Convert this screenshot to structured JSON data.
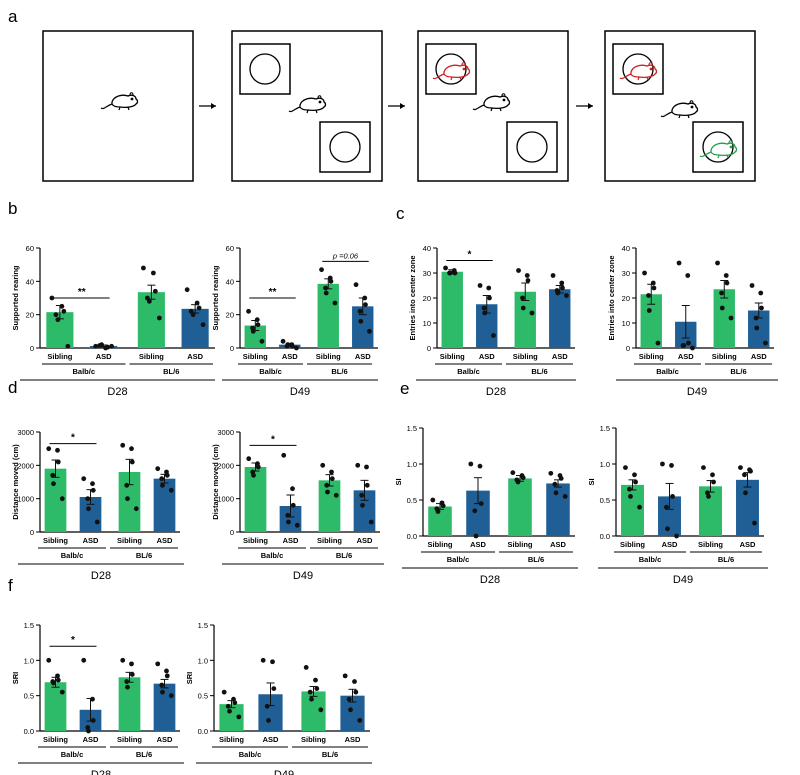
{
  "panels": {
    "a": "a",
    "b": "b",
    "c": "c",
    "d": "d",
    "e": "e",
    "f": "f"
  },
  "colors": {
    "sibling": "#2dbb6a",
    "asd": "#1f5f96",
    "axis": "#000000",
    "red_rat": "#cc2222",
    "green_rat": "#22a04a"
  },
  "schematic": {
    "description_free": true,
    "arrows": 3
  },
  "chart_data": [
    {
      "id": "b_d28",
      "type": "bar",
      "panel": "b",
      "ylabel": "Supported rearing",
      "ylim": [
        0,
        60
      ],
      "yticks": [
        0,
        20,
        40,
        60
      ],
      "categories": [
        "Sibling",
        "ASD",
        "Sibling",
        "ASD"
      ],
      "groups": [
        "Balb/c",
        "BL/6"
      ],
      "timepoint": "D28",
      "values": [
        21.5,
        1.2,
        33.5,
        23.5
      ],
      "errors": [
        4.0,
        0.6,
        4.2,
        2.5
      ],
      "points": [
        [
          30,
          25,
          22,
          20,
          17,
          1
        ],
        [
          1,
          0,
          0.5,
          1.5,
          2,
          1
        ],
        [
          48,
          45,
          34,
          30,
          28,
          18
        ],
        [
          35,
          27,
          24,
          22,
          20,
          14
        ]
      ],
      "sig": [
        {
          "bar1": 0,
          "bar2": 1,
          "label": "**",
          "y": 30
        }
      ]
    },
    {
      "id": "b_d49",
      "type": "bar",
      "panel": "b",
      "ylabel": "Supported rearing",
      "ylim": [
        0,
        60
      ],
      "yticks": [
        0,
        20,
        40,
        60
      ],
      "categories": [
        "Sibling",
        "ASD",
        "Sibling",
        "ASD"
      ],
      "groups": [
        "Balb/c",
        "BL/6"
      ],
      "timepoint": "D49",
      "values": [
        13.5,
        2.0,
        38.5,
        25.0
      ],
      "errors": [
        3.0,
        0.8,
        3.0,
        5.0
      ],
      "points": [
        [
          22,
          17,
          14,
          12,
          10,
          4
        ],
        [
          4,
          2,
          1,
          1,
          2,
          0
        ],
        [
          47,
          42,
          40,
          36,
          33,
          27
        ],
        [
          38,
          30,
          26,
          22,
          16,
          10
        ]
      ],
      "sig": [
        {
          "bar1": 0,
          "bar2": 1,
          "label": "**",
          "y": 30
        },
        {
          "bar1": 2,
          "bar2": 3,
          "label": "p =0.06",
          "y": 52
        }
      ]
    },
    {
      "id": "c_d28",
      "type": "bar",
      "panel": "c",
      "ylabel": "Entries into center zone",
      "ylim": [
        0,
        40
      ],
      "yticks": [
        0,
        10,
        20,
        30,
        40
      ],
      "categories": [
        "Sibling",
        "ASD",
        "Sibling",
        "ASD"
      ],
      "groups": [
        "Balb/c",
        "BL/6"
      ],
      "timepoint": "D28",
      "values": [
        30.5,
        17.5,
        22.5,
        23.5
      ],
      "errors": [
        0.8,
        3.5,
        3.5,
        1.5
      ],
      "points": [
        [
          32,
          31,
          30,
          30,
          30
        ],
        [
          25,
          24,
          20,
          16,
          14,
          5
        ],
        [
          31,
          29,
          27,
          20,
          16,
          14
        ],
        [
          29,
          26,
          24,
          23,
          22,
          21
        ]
      ],
      "sig": [
        {
          "bar1": 0,
          "bar2": 1,
          "label": "*",
          "y": 35
        }
      ]
    },
    {
      "id": "c_d49",
      "type": "bar",
      "panel": "c",
      "ylabel": "Entries into center zone",
      "ylim": [
        0,
        40
      ],
      "yticks": [
        0,
        10,
        20,
        30,
        40
      ],
      "categories": [
        "Sibling",
        "ASD",
        "Sibling",
        "ASD"
      ],
      "groups": [
        "Balb/c",
        "BL/6"
      ],
      "timepoint": "D49",
      "values": [
        21.5,
        10.5,
        23.5,
        15.0
      ],
      "errors": [
        4.0,
        6.5,
        3.5,
        3.0
      ],
      "points": [
        [
          30,
          26,
          24,
          21,
          15,
          2
        ],
        [
          34,
          29,
          2,
          1,
          1,
          0
        ],
        [
          34,
          29,
          26,
          22,
          16,
          12
        ],
        [
          25,
          22,
          16,
          12,
          8,
          2
        ]
      ],
      "sig": []
    },
    {
      "id": "d_d28",
      "type": "bar",
      "panel": "d",
      "ylabel": "Distance moved (cm)",
      "ylim": [
        0,
        3000
      ],
      "yticks": [
        0,
        1000,
        2000,
        3000
      ],
      "categories": [
        "Sibling",
        "ASD",
        "Sibling",
        "ASD"
      ],
      "groups": [
        "Balb/c",
        "BL/6"
      ],
      "timepoint": "D28",
      "values": [
        1900,
        1050,
        1800,
        1600
      ],
      "errors": [
        260,
        220,
        380,
        130
      ],
      "points": [
        [
          2500,
          2450,
          2100,
          1700,
          1450,
          1000
        ],
        [
          1600,
          1450,
          1250,
          1000,
          700,
          300
        ],
        [
          2600,
          2500,
          2100,
          1400,
          1000,
          700
        ],
        [
          1900,
          1800,
          1700,
          1600,
          1400,
          1250
        ]
      ],
      "sig": [
        {
          "bar1": 0,
          "bar2": 1,
          "label": "*",
          "y": 2650
        }
      ]
    },
    {
      "id": "d_d49",
      "type": "bar",
      "panel": "d",
      "ylabel": "Distance moved (cm)",
      "ylim": [
        0,
        3000
      ],
      "yticks": [
        0,
        1000,
        2000,
        3000
      ],
      "categories": [
        "Sibling",
        "ASD",
        "Sibling",
        "ASD"
      ],
      "groups": [
        "Balb/c",
        "BL/6"
      ],
      "timepoint": "D49",
      "values": [
        1950,
        780,
        1550,
        1250
      ],
      "errors": [
        120,
        330,
        170,
        300
      ],
      "points": [
        [
          2200,
          2050,
          1950,
          1800,
          1700
        ],
        [
          2300,
          1300,
          800,
          500,
          300,
          200
        ],
        [
          2000,
          1800,
          1600,
          1400,
          1200,
          1100
        ],
        [
          2000,
          1950,
          1400,
          1100,
          800,
          300
        ]
      ],
      "sig": [
        {
          "bar1": 0,
          "bar2": 1,
          "label": "*",
          "y": 2600
        }
      ]
    },
    {
      "id": "e_d28",
      "type": "bar",
      "panel": "e",
      "ylabel": "SI",
      "ylim": [
        0,
        1.5
      ],
      "yticks": [
        0.0,
        0.5,
        1.0,
        1.5
      ],
      "categories": [
        "Sibling",
        "ASD",
        "Sibling",
        "ASD"
      ],
      "groups": [
        "Balb/c",
        "BL/6"
      ],
      "timepoint": "D28",
      "values": [
        0.41,
        0.63,
        0.8,
        0.73
      ],
      "errors": [
        0.04,
        0.18,
        0.04,
        0.05
      ],
      "points": [
        [
          0.5,
          0.46,
          0.42,
          0.38,
          0.34
        ],
        [
          1.0,
          0.97,
          0.45,
          0.35,
          0.0
        ],
        [
          0.88,
          0.84,
          0.81,
          0.78,
          0.75
        ],
        [
          0.87,
          0.84,
          0.8,
          0.72,
          0.6,
          0.55
        ]
      ],
      "sig": []
    },
    {
      "id": "e_d49",
      "type": "bar",
      "panel": "e",
      "ylabel": "SI",
      "ylim": [
        0,
        1.5
      ],
      "yticks": [
        0.0,
        0.5,
        1.0,
        1.5
      ],
      "categories": [
        "Sibling",
        "ASD",
        "Sibling",
        "ASD"
      ],
      "groups": [
        "Balb/c",
        "BL/6"
      ],
      "timepoint": "D49",
      "values": [
        0.71,
        0.55,
        0.69,
        0.78
      ],
      "errors": [
        0.07,
        0.18,
        0.08,
        0.1
      ],
      "points": [
        [
          0.95,
          0.85,
          0.75,
          0.65,
          0.55,
          0.4
        ],
        [
          1.0,
          0.98,
          0.55,
          0.4,
          0.1,
          0.0
        ],
        [
          0.95,
          0.85,
          0.75,
          0.6,
          0.55
        ],
        [
          0.95,
          0.92,
          0.9,
          0.85,
          0.6,
          0.18
        ]
      ],
      "sig": []
    },
    {
      "id": "f_d28",
      "type": "bar",
      "panel": "f",
      "ylabel": "SRI",
      "ylim": [
        0,
        1.5
      ],
      "yticks": [
        0.0,
        0.5,
        1.0,
        1.5
      ],
      "categories": [
        "Sibling",
        "ASD",
        "Sibling",
        "ASD"
      ],
      "groups": [
        "Balb/c",
        "BL/6"
      ],
      "timepoint": "D28",
      "values": [
        0.69,
        0.3,
        0.76,
        0.67
      ],
      "errors": [
        0.07,
        0.16,
        0.07,
        0.06
      ],
      "points": [
        [
          1.0,
          0.78,
          0.72,
          0.7,
          0.68,
          0.55
        ],
        [
          1.0,
          0.45,
          0.15,
          0.05,
          0.0
        ],
        [
          1.0,
          0.95,
          0.8,
          0.7,
          0.62
        ],
        [
          0.95,
          0.85,
          0.78,
          0.65,
          0.55,
          0.5
        ]
      ],
      "sig": [
        {
          "bar1": 0,
          "bar2": 1,
          "label": "*",
          "y": 1.2
        }
      ]
    },
    {
      "id": "f_d49",
      "type": "bar",
      "panel": "f",
      "ylabel": "SRI",
      "ylim": [
        0,
        1.5
      ],
      "yticks": [
        0.0,
        0.5,
        1.0,
        1.5
      ],
      "categories": [
        "Sibling",
        "ASD",
        "Sibling",
        "ASD"
      ],
      "groups": [
        "Balb/c",
        "BL/6"
      ],
      "timepoint": "D49",
      "values": [
        0.38,
        0.52,
        0.56,
        0.5
      ],
      "errors": [
        0.05,
        0.16,
        0.07,
        0.09
      ],
      "points": [
        [
          0.55,
          0.45,
          0.4,
          0.35,
          0.28,
          0.2
        ],
        [
          1.0,
          0.98,
          0.6,
          0.35,
          0.15
        ],
        [
          0.9,
          0.72,
          0.6,
          0.55,
          0.45,
          0.3
        ],
        [
          0.78,
          0.7,
          0.55,
          0.45,
          0.3,
          0.15
        ]
      ],
      "sig": []
    }
  ]
}
